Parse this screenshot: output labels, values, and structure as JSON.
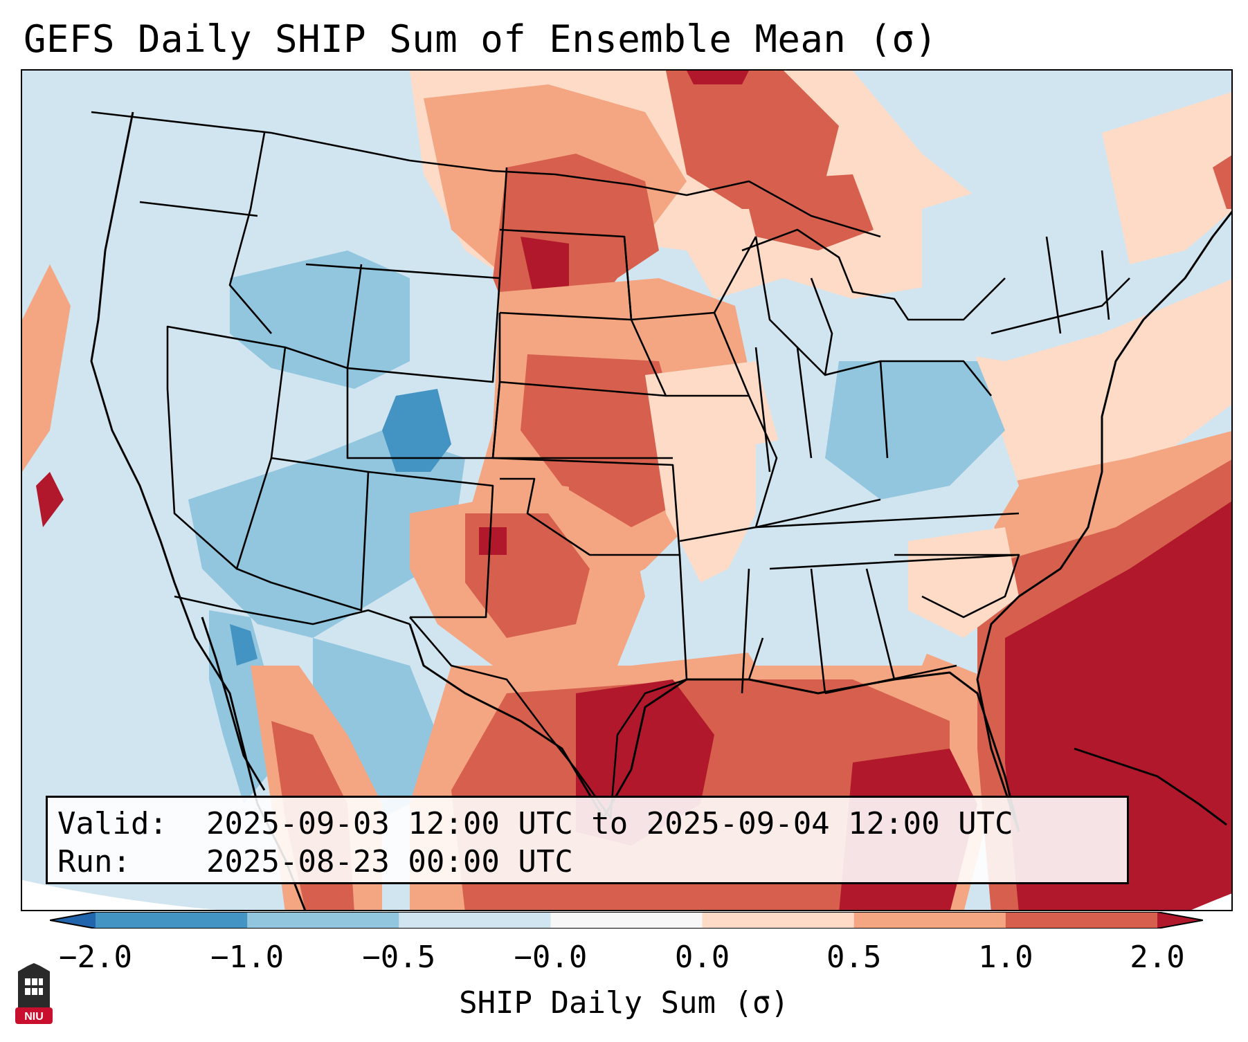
{
  "title": "GEFS Daily SHIP Sum of Ensemble Mean (σ)",
  "info": {
    "valid_label": "Valid:",
    "valid_value": "2025-09-03 12:00 UTC to 2025-09-04 12:00 UTC",
    "run_label": "Run:",
    "run_value": "2025-08-23 00:00 UTC"
  },
  "colorbar": {
    "label": "SHIP Daily Sum (σ)",
    "ticks": [
      "−2.0",
      "−1.0",
      "−0.5",
      "−0.0",
      "0.0",
      "0.5",
      "1.0",
      "2.0"
    ],
    "bins": [
      {
        "range": "-2.0 to -1.0",
        "color": "#4393c3"
      },
      {
        "range": "-1.0 to -0.5",
        "color": "#92c5de"
      },
      {
        "range": "-0.5 to -0.0",
        "color": "#d1e5f0"
      },
      {
        "range": "-0.0 to 0.0",
        "color": "#f7f7f7"
      },
      {
        "range": "0.0 to 0.5",
        "color": "#fddbc7"
      },
      {
        "range": "0.5 to 1.0",
        "color": "#f4a582"
      },
      {
        "range": "1.0 to 2.0",
        "color": "#d6604d"
      }
    ],
    "under_color": "#2166ac",
    "over_color": "#b2182b"
  },
  "logo": {
    "text": "NIU",
    "name": "NIU logo"
  },
  "map": {
    "description_colors": {
      "ocean": "#d1e5f0",
      "outside": "#ffffff"
    }
  }
}
